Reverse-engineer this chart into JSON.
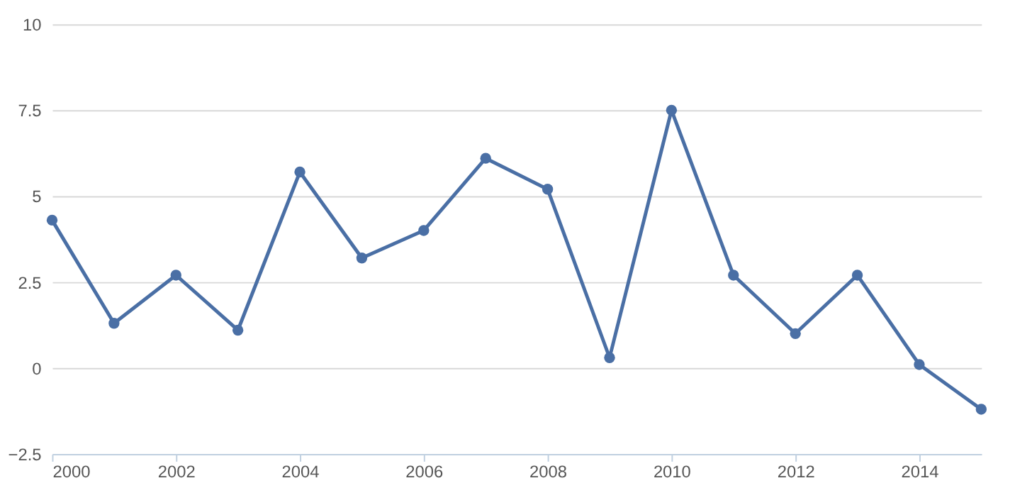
{
  "chart_data": {
    "type": "line",
    "x": [
      2000,
      2001,
      2002,
      2003,
      2004,
      2005,
      2006,
      2007,
      2008,
      2009,
      2010,
      2011,
      2012,
      2013,
      2014,
      2015
    ],
    "series": [
      {
        "color": "#4a6fa5",
        "values": [
          4.3,
          1.3,
          2.7,
          1.1,
          5.7,
          3.2,
          4.0,
          6.1,
          5.2,
          0.3,
          7.5,
          2.7,
          1.0,
          2.7,
          0.1,
          -1.2
        ]
      }
    ],
    "xlim": [
      2000,
      2015
    ],
    "xticks": [
      2000,
      2002,
      2004,
      2006,
      2008,
      2010,
      2012,
      2014
    ],
    "ylim": [
      -2.5,
      10
    ],
    "yticks": [
      -2.5,
      0,
      2.5,
      5,
      7.5,
      10
    ],
    "grid": "y",
    "marker": "circle",
    "line_style": "solid",
    "legend": false
  }
}
